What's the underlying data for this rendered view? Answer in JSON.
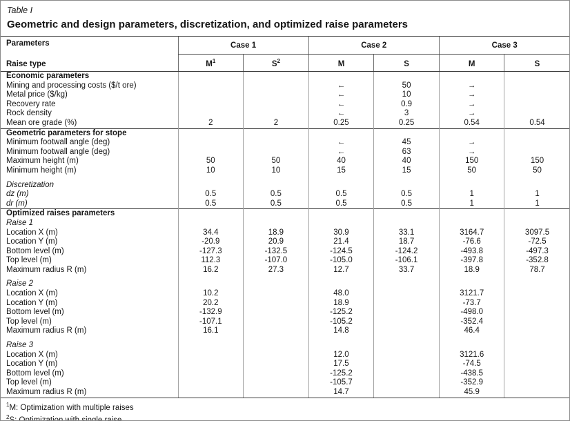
{
  "table_label": "Table I",
  "title": "Geometric and design parameters, discretization, and optimized raise parameters",
  "header": {
    "param_label": "Parameters",
    "raise_type_label": "Raise type",
    "cases": [
      "Case 1",
      "Case 2",
      "Case 3"
    ],
    "subcols": [
      {
        "text": "M",
        "sup": "1"
      },
      {
        "text": "S",
        "sup": "2"
      },
      {
        "text": "M",
        "sup": ""
      },
      {
        "text": "S",
        "sup": ""
      },
      {
        "text": "M",
        "sup": ""
      },
      {
        "text": "S",
        "sup": ""
      }
    ]
  },
  "rows": [
    {
      "label": "Economic parameters",
      "variant": "bold",
      "rule": true,
      "gap": false,
      "cells": [
        "",
        "",
        "",
        "",
        "",
        ""
      ]
    },
    {
      "label": "Mining and processing costs ($/t ore)",
      "variant": "plain",
      "rule": false,
      "gap": false,
      "cells": [
        "",
        "",
        "←",
        "50",
        "→",
        ""
      ]
    },
    {
      "label": "Metal price ($/kg)",
      "variant": "plain",
      "rule": false,
      "gap": false,
      "cells": [
        "",
        "",
        "←",
        "10",
        "→",
        ""
      ]
    },
    {
      "label": "Recovery rate",
      "variant": "plain",
      "rule": false,
      "gap": false,
      "cells": [
        "",
        "",
        "←",
        "0.9",
        "→",
        ""
      ]
    },
    {
      "label": "Rock density",
      "variant": "plain",
      "rule": false,
      "gap": false,
      "cells": [
        "",
        "",
        "←",
        "3",
        "→",
        ""
      ]
    },
    {
      "label": "Mean ore grade (%)",
      "variant": "plain",
      "rule": false,
      "gap": false,
      "cells": [
        "2",
        "2",
        "0.25",
        "0.25",
        "0.54",
        "0.54"
      ]
    },
    {
      "label": "Geometric parameters for stope",
      "variant": "bold",
      "rule": true,
      "gap": false,
      "cells": [
        "",
        "",
        "",
        "",
        "",
        ""
      ]
    },
    {
      "label": "Minimum footwall angle (deg)",
      "variant": "plain",
      "rule": false,
      "gap": false,
      "cells": [
        "",
        "",
        "←",
        "45",
        "→",
        ""
      ]
    },
    {
      "label": "Minimum footwall angle (deg)",
      "variant": "plain",
      "rule": false,
      "gap": false,
      "cells": [
        "",
        "",
        "←",
        "63",
        "→",
        ""
      ]
    },
    {
      "label": "Maximum height (m)",
      "variant": "plain",
      "rule": false,
      "gap": false,
      "cells": [
        "50",
        "50",
        "40",
        "40",
        "150",
        "150"
      ]
    },
    {
      "label": "Minimum height (m)",
      "variant": "plain",
      "rule": false,
      "gap": false,
      "cells": [
        "10",
        "10",
        "15",
        "15",
        "50",
        "50"
      ]
    },
    {
      "label": "Discretization",
      "variant": "italic",
      "rule": false,
      "gap": true,
      "cells": [
        "",
        "",
        "",
        "",
        "",
        ""
      ]
    },
    {
      "label": "dz (m)",
      "variant": "italic",
      "rule": false,
      "gap": false,
      "cells": [
        "0.5",
        "0.5",
        "0.5",
        "0.5",
        "1",
        "1"
      ]
    },
    {
      "label": "dr (m)",
      "variant": "italic",
      "rule": false,
      "gap": false,
      "cells": [
        "0.5",
        "0.5",
        "0.5",
        "0.5",
        "1",
        "1"
      ]
    },
    {
      "label": "Optimized raises parameters",
      "variant": "bold",
      "rule": true,
      "gap": false,
      "cells": [
        "",
        "",
        "",
        "",
        "",
        ""
      ]
    },
    {
      "label": "Raise 1",
      "variant": "italic",
      "rule": false,
      "gap": false,
      "cells": [
        "",
        "",
        "",
        "",
        "",
        ""
      ]
    },
    {
      "label": "Location X (m)",
      "variant": "plain",
      "rule": false,
      "gap": false,
      "cells": [
        "34.4",
        "18.9",
        "30.9",
        "33.1",
        "3164.7",
        "3097.5"
      ]
    },
    {
      "label": "Location Y (m)",
      "variant": "plain",
      "rule": false,
      "gap": false,
      "cells": [
        "-20.9",
        "20.9",
        "21.4",
        "18.7",
        "-76.6",
        "-72.5"
      ]
    },
    {
      "label": "Bottom level (m)",
      "variant": "plain",
      "rule": false,
      "gap": false,
      "cells": [
        "-127.3",
        "-132.5",
        "-124.5",
        "-124.2",
        "-493.8",
        "-497.3"
      ]
    },
    {
      "label": "Top level (m)",
      "variant": "plain",
      "rule": false,
      "gap": false,
      "cells": [
        "112.3",
        "-107.0",
        "-105.0",
        "-106.1",
        "-397.8",
        "-352.8"
      ]
    },
    {
      "label": "Maximum radius R (m)",
      "variant": "plain",
      "rule": false,
      "gap": false,
      "cells": [
        "16.2",
        "27.3",
        "12.7",
        "33.7",
        "18.9",
        "78.7"
      ]
    },
    {
      "label": "Raise 2",
      "variant": "italic",
      "rule": false,
      "gap": true,
      "cells": [
        "",
        "",
        "",
        "",
        "",
        ""
      ]
    },
    {
      "label": "Location X (m)",
      "variant": "plain",
      "rule": false,
      "gap": false,
      "cells": [
        "10.2",
        "",
        "48.0",
        "",
        "3121.7",
        ""
      ]
    },
    {
      "label": "Location Y (m)",
      "variant": "plain",
      "rule": false,
      "gap": false,
      "cells": [
        "20.2",
        "",
        "18.9",
        "",
        "-73.7",
        ""
      ]
    },
    {
      "label": "Bottom level (m)",
      "variant": "plain",
      "rule": false,
      "gap": false,
      "cells": [
        "-132.9",
        "",
        "-125.2",
        "",
        "-498.0",
        ""
      ]
    },
    {
      "label": "Top level (m)",
      "variant": "plain",
      "rule": false,
      "gap": false,
      "cells": [
        "-107.1",
        "",
        "-105.2",
        "",
        "-352.4",
        ""
      ]
    },
    {
      "label": "Maximum radius R (m)",
      "variant": "plain",
      "rule": false,
      "gap": false,
      "cells": [
        "16.1",
        "",
        "14.8",
        "",
        "46.4",
        ""
      ]
    },
    {
      "label": "Raise 3",
      "variant": "italic",
      "rule": false,
      "gap": true,
      "cells": [
        "",
        "",
        "",
        "",
        "",
        ""
      ]
    },
    {
      "label": "Location X (m)",
      "variant": "plain",
      "rule": false,
      "gap": false,
      "cells": [
        "",
        "",
        "12.0",
        "",
        "3121.6",
        ""
      ]
    },
    {
      "label": "Location Y (m)",
      "variant": "plain",
      "rule": false,
      "gap": false,
      "cells": [
        "",
        "",
        "17.5",
        "",
        "-74.5",
        ""
      ]
    },
    {
      "label": "Bottom level (m)",
      "variant": "plain",
      "rule": false,
      "gap": false,
      "cells": [
        "",
        "",
        "-125.2",
        "",
        "-438.5",
        ""
      ]
    },
    {
      "label": "Top level (m)",
      "variant": "plain",
      "rule": false,
      "gap": false,
      "cells": [
        "",
        "",
        "-105.7",
        "",
        "-352.9",
        ""
      ]
    },
    {
      "label": "Maximum radius R (m)",
      "variant": "plain",
      "rule": false,
      "gap": false,
      "cells": [
        "",
        "",
        "14.7",
        "",
        "45.9",
        ""
      ]
    }
  ],
  "footnotes": [
    {
      "sup": "1",
      "text": "M: Optimization with multiple raises"
    },
    {
      "sup": "2",
      "text": "S: Optimization with single raise"
    }
  ]
}
